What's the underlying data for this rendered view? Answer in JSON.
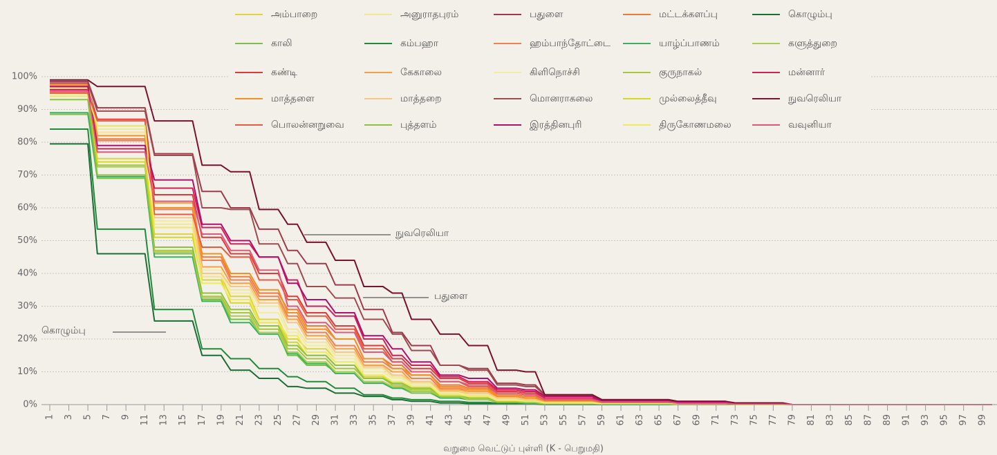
{
  "chart_data": {
    "type": "line",
    "x_label": "வறுமை வெட்டுப் புள்ளி (K - பெறுமதி)",
    "x": [
      1,
      5,
      6,
      11,
      12,
      16,
      17,
      19,
      20,
      22,
      23,
      25,
      26,
      27,
      28,
      30,
      31,
      33,
      34,
      36,
      37,
      38,
      39,
      41,
      42,
      44,
      45,
      47,
      48,
      50,
      51,
      52,
      53,
      58,
      59,
      66,
      67,
      72,
      73,
      78,
      79,
      100
    ],
    "xlim": [
      1,
      100
    ],
    "xticks": [
      1,
      3,
      5,
      7,
      9,
      11,
      13,
      15,
      17,
      19,
      21,
      23,
      25,
      27,
      29,
      31,
      33,
      35,
      37,
      39,
      41,
      43,
      45,
      47,
      49,
      51,
      53,
      55,
      57,
      59,
      61,
      63,
      65,
      67,
      69,
      71,
      73,
      75,
      77,
      79,
      81,
      83,
      85,
      87,
      89,
      91,
      93,
      95,
      97,
      99
    ],
    "ylim": [
      0,
      100
    ],
    "yticks": [
      {
        "value": 0,
        "label": "0%"
      },
      {
        "value": 10,
        "label": "10%"
      },
      {
        "value": 20,
        "label": "20%"
      },
      {
        "value": 30,
        "label": "30%"
      },
      {
        "value": 40,
        "label": "40%"
      },
      {
        "value": 50,
        "label": "50%"
      },
      {
        "value": 60,
        "label": "60%"
      },
      {
        "value": 70,
        "label": "70%"
      },
      {
        "value": 80,
        "label": "80%"
      },
      {
        "value": 90,
        "label": "90%"
      },
      {
        "value": 100,
        "label": "100%"
      }
    ],
    "grid": true,
    "series": [
      {
        "name": "அம்பாறை",
        "color": "#e0d43a",
        "values": [
          94,
          94,
          75,
          75,
          52,
          52,
          39,
          39,
          33,
          33,
          26,
          26,
          20,
          20,
          17,
          17,
          14,
          14,
          10,
          10,
          8,
          8,
          6,
          6,
          4,
          4,
          3,
          3,
          1.5,
          1.5,
          1.2,
          1.2,
          0.6,
          0.6,
          0.3,
          0.3,
          0.1,
          0.1,
          0,
          0,
          0,
          0
        ]
      },
      {
        "name": "அனுராதபுரம்",
        "color": "#efe89a",
        "values": [
          95.5,
          95.5,
          84,
          84,
          55,
          55,
          39,
          39,
          35,
          35,
          30,
          30,
          23,
          23,
          19,
          19,
          15,
          15,
          11,
          11,
          8.5,
          8.5,
          6.5,
          6.5,
          3.5,
          3.5,
          3,
          3,
          1.5,
          1.5,
          1.2,
          1.2,
          0.6,
          0.6,
          0.3,
          0.3,
          0.1,
          0.1,
          0,
          0,
          0,
          0
        ]
      },
      {
        "name": "பதுளை",
        "color": "#9e3a4a",
        "values": [
          98.5,
          98.5,
          90.5,
          90.5,
          76.5,
          76.5,
          65,
          65,
          60,
          60,
          53.5,
          53.5,
          47,
          47,
          43,
          43,
          36.5,
          36.5,
          29,
          29,
          22,
          22,
          18,
          18,
          12,
          12,
          11,
          11,
          6.5,
          6.5,
          6,
          6,
          3,
          3,
          1.5,
          1.5,
          1,
          1,
          0.5,
          0.5,
          0,
          0
        ]
      },
      {
        "name": "மட்டக்களப்பு",
        "color": "#f07a3a",
        "values": [
          96,
          96,
          81,
          81,
          62,
          62,
          45,
          45,
          39,
          39,
          34,
          34,
          29,
          29,
          24,
          24,
          20,
          20,
          14,
          14,
          12,
          12,
          9,
          9,
          6,
          6,
          5,
          5,
          3,
          3,
          2.5,
          2.5,
          1.2,
          1.2,
          0.6,
          0.6,
          0.3,
          0.3,
          0.1,
          0.1,
          0,
          0
        ]
      },
      {
        "name": "கொழும்பு",
        "color": "#1a6e35",
        "values": [
          79.5,
          79.5,
          46,
          46,
          25.5,
          25.5,
          15,
          15,
          10.5,
          10.5,
          8,
          8,
          5.5,
          5.5,
          5,
          5,
          3.5,
          3.5,
          2.5,
          2.5,
          1.5,
          1.5,
          1,
          1,
          0.5,
          0.5,
          0.3,
          0.3,
          0.2,
          0.2,
          0.1,
          0.1,
          0,
          0,
          0,
          0,
          0,
          0,
          0,
          0,
          0,
          0
        ]
      },
      {
        "name": "காலி",
        "color": "#7cc04a",
        "values": [
          88.5,
          88.5,
          69,
          69,
          46,
          46,
          32,
          32,
          26,
          26,
          22,
          22,
          15,
          15,
          12,
          12,
          10,
          10,
          7,
          7,
          5,
          5,
          3.5,
          3.5,
          2,
          2,
          1.5,
          1.5,
          0.7,
          0.7,
          0.5,
          0.5,
          0.2,
          0.2,
          0.1,
          0.1,
          0,
          0,
          0,
          0,
          0,
          0
        ]
      },
      {
        "name": "கம்பஹா",
        "color": "#1f8a3a",
        "values": [
          84,
          84,
          53.5,
          53.5,
          29,
          29,
          17,
          17,
          14,
          14,
          11,
          11,
          8.5,
          8.5,
          7,
          7,
          5,
          5,
          3,
          3,
          2,
          2,
          1.5,
          1.5,
          1,
          1,
          0.7,
          0.7,
          0.4,
          0.4,
          0.2,
          0.2,
          0.1,
          0.1,
          0,
          0,
          0,
          0,
          0,
          0,
          0,
          0
        ]
      },
      {
        "name": "ஹம்பாந்தோட்டை",
        "color": "#f08050",
        "values": [
          95,
          95,
          80.5,
          80.5,
          59.5,
          59.5,
          44,
          44,
          38,
          38,
          33,
          33,
          27,
          27,
          22,
          22,
          18,
          18,
          13,
          13,
          11,
          11,
          8,
          8,
          5,
          5,
          4,
          4,
          2.5,
          2.5,
          2,
          2,
          1,
          1,
          0.5,
          0.5,
          0.2,
          0.2,
          0,
          0,
          0,
          0
        ]
      },
      {
        "name": "யாழ்ப்பாணம்",
        "color": "#3ab060",
        "values": [
          89,
          89,
          69.5,
          69.5,
          45,
          45,
          31.5,
          31.5,
          25,
          25,
          21.5,
          21.5,
          15.5,
          15.5,
          12.5,
          12.5,
          9.5,
          9.5,
          6.5,
          6.5,
          5,
          5,
          4,
          4,
          2,
          2,
          1.5,
          1.5,
          0.8,
          0.8,
          0.5,
          0.5,
          0.2,
          0.2,
          0.1,
          0.1,
          0,
          0,
          0,
          0,
          0,
          0
        ]
      },
      {
        "name": "களுத்துறை",
        "color": "#a8cc50",
        "values": [
          95,
          95,
          72.5,
          72.5,
          46.5,
          46.5,
          32.5,
          32.5,
          27,
          27,
          22,
          22,
          16,
          16,
          13,
          13,
          10,
          10,
          7,
          7,
          5.5,
          5.5,
          4,
          4,
          2.5,
          2.5,
          1.5,
          1.5,
          0.8,
          0.8,
          0.6,
          0.6,
          0.3,
          0.3,
          0.1,
          0.1,
          0,
          0,
          0,
          0,
          0,
          0
        ]
      },
      {
        "name": "கண்டி",
        "color": "#e03a3a",
        "values": [
          96.5,
          96.5,
          87,
          87,
          64,
          64,
          51,
          51,
          46,
          46,
          40,
          40,
          33,
          33,
          28,
          28,
          24,
          24,
          18,
          18,
          14,
          14,
          11,
          11,
          8,
          8,
          6.5,
          6.5,
          4,
          4,
          3.5,
          3.5,
          2,
          2,
          1,
          1,
          0.5,
          0.5,
          0.1,
          0.1,
          0,
          0
        ]
      },
      {
        "name": "கேகாலை",
        "color": "#f8a040",
        "values": [
          97,
          97,
          83,
          83,
          61.5,
          61.5,
          42,
          42,
          37,
          37,
          32,
          32,
          26,
          26,
          21,
          21,
          17,
          17,
          12,
          12,
          10,
          10,
          7,
          7,
          4.5,
          4.5,
          4,
          4,
          2,
          2,
          1.5,
          1.5,
          0.8,
          0.8,
          0.4,
          0.4,
          0.2,
          0.2,
          0,
          0,
          0,
          0
        ]
      },
      {
        "name": "கிளிநொச்சி",
        "color": "#f4ee9a",
        "values": [
          94.5,
          94.5,
          83,
          83,
          56,
          56,
          41,
          41,
          34,
          34,
          28,
          28,
          22,
          22,
          18,
          18,
          14,
          14,
          10,
          10,
          8,
          8,
          6,
          6,
          3.5,
          3.5,
          2.5,
          2.5,
          1.2,
          1.2,
          1,
          1,
          0.5,
          0.5,
          0.2,
          0.2,
          0.1,
          0.1,
          0,
          0,
          0,
          0
        ]
      },
      {
        "name": "குருநாகல்",
        "color": "#a8c838",
        "values": [
          96,
          96,
          73,
          73,
          47,
          47,
          33,
          33,
          28,
          28,
          23,
          23,
          17,
          17,
          14,
          14,
          11,
          11,
          8,
          8,
          6,
          6,
          4.5,
          4.5,
          2.5,
          2.5,
          2,
          2,
          1,
          1,
          0.8,
          0.8,
          0.4,
          0.4,
          0.2,
          0.2,
          0,
          0,
          0,
          0,
          0,
          0
        ]
      },
      {
        "name": "மன்னார்",
        "color": "#d0205a",
        "values": [
          96,
          96,
          78,
          78,
          66,
          66,
          54,
          54,
          49,
          49,
          45,
          45,
          38,
          38,
          30,
          30,
          27,
          27,
          20,
          20,
          15,
          15,
          12,
          12,
          8.5,
          8.5,
          7,
          7,
          4.5,
          4.5,
          4,
          4,
          2,
          2,
          1,
          1,
          0.5,
          0.5,
          0.2,
          0.2,
          0,
          0
        ]
      },
      {
        "name": "மாத்தளை",
        "color": "#f49020",
        "values": [
          97.5,
          97.5,
          82,
          82,
          60,
          60,
          46,
          46,
          40,
          40,
          35,
          35,
          28,
          28,
          23,
          23,
          20,
          20,
          14,
          14,
          11,
          11,
          9,
          9,
          5.5,
          5.5,
          4.5,
          4.5,
          2.5,
          2.5,
          2,
          2,
          1,
          1,
          0.5,
          0.5,
          0.2,
          0.2,
          0,
          0,
          0,
          0
        ]
      },
      {
        "name": "மாத்தறை",
        "color": "#f8c880",
        "values": [
          96.5,
          96.5,
          85,
          85,
          57,
          57,
          40,
          40,
          36,
          36,
          31,
          31,
          25,
          25,
          20,
          20,
          16,
          16,
          11.5,
          11.5,
          9,
          9,
          7,
          7,
          4,
          4,
          3.5,
          3.5,
          2,
          2,
          1.5,
          1.5,
          0.7,
          0.7,
          0.3,
          0.3,
          0.1,
          0.1,
          0,
          0,
          0,
          0
        ]
      },
      {
        "name": "மொனராகலை",
        "color": "#a04a50",
        "values": [
          98,
          98,
          89.5,
          89.5,
          76,
          76,
          60,
          60,
          59.5,
          59.5,
          49,
          49,
          43,
          43,
          36,
          36,
          32.5,
          32.5,
          26,
          26,
          21.5,
          21.5,
          16.5,
          16.5,
          12,
          12,
          10.5,
          10.5,
          6,
          6,
          5.5,
          5.5,
          2.8,
          2.8,
          1.2,
          1.2,
          0.8,
          0.8,
          0.3,
          0.3,
          0,
          0
        ]
      },
      {
        "name": "முல்லைத்தீவு",
        "color": "#d8d820",
        "values": [
          95,
          95,
          74,
          74,
          51,
          51,
          38,
          38,
          31,
          31,
          25,
          25,
          19,
          19,
          15,
          15,
          12,
          12,
          8.5,
          8.5,
          7,
          7,
          5,
          5,
          3,
          3,
          2,
          2,
          1,
          1,
          0.8,
          0.8,
          0.4,
          0.4,
          0.2,
          0.2,
          0,
          0,
          0,
          0,
          0,
          0
        ]
      },
      {
        "name": "நுவரெலியா",
        "color": "#7a1030",
        "values": [
          99,
          99,
          97,
          97,
          86.5,
          86.5,
          73,
          73,
          71,
          71,
          59.5,
          59.5,
          55,
          55,
          49.5,
          49.5,
          44,
          44,
          36,
          36,
          34,
          34,
          26,
          26,
          21.5,
          21.5,
          18,
          18,
          10.5,
          10.5,
          10,
          10,
          3,
          3,
          1.5,
          1.5,
          1,
          1,
          0.5,
          0.5,
          0,
          0
        ]
      },
      {
        "name": "பொலன்னறுவை",
        "color": "#e85a40",
        "values": [
          95,
          95,
          86.5,
          86.5,
          58,
          58,
          48,
          48,
          45,
          45,
          38,
          38,
          32,
          32,
          27,
          27,
          23,
          23,
          17,
          17,
          13,
          13,
          10,
          10,
          7,
          7,
          5.5,
          5.5,
          3.5,
          3.5,
          3,
          3,
          1.5,
          1.5,
          0.7,
          0.7,
          0.4,
          0.4,
          0.1,
          0.1,
          0,
          0
        ]
      },
      {
        "name": "புத்தளம்",
        "color": "#90c040",
        "values": [
          93,
          93,
          70,
          70,
          48,
          48,
          34,
          34,
          29,
          29,
          24,
          24,
          18,
          18,
          15,
          15,
          12,
          12,
          8,
          8,
          6.5,
          6.5,
          5,
          5,
          3,
          3,
          2,
          2,
          1,
          1,
          0.8,
          0.8,
          0.4,
          0.4,
          0.2,
          0.2,
          0,
          0,
          0,
          0,
          0,
          0
        ]
      },
      {
        "name": "இரத்தினபுரி",
        "color": "#b0106a",
        "values": [
          97,
          97,
          79,
          79,
          68.5,
          68.5,
          55,
          55,
          50,
          50,
          45,
          45,
          37,
          37,
          32,
          32,
          28,
          28,
          21,
          21,
          17,
          17,
          13,
          13,
          9,
          9,
          8,
          8,
          5,
          5,
          4.5,
          4.5,
          2.5,
          2.5,
          1,
          1,
          0.7,
          0.7,
          0.2,
          0.2,
          0,
          0
        ]
      },
      {
        "name": "திருகோணமலை",
        "color": "#eeea60",
        "values": [
          94,
          94,
          85,
          85,
          54,
          54,
          37,
          37,
          32,
          32,
          25,
          25,
          21,
          21,
          16,
          16,
          13,
          13,
          9,
          9,
          7,
          7,
          5.5,
          5.5,
          3,
          3,
          2.5,
          2.5,
          1.2,
          1.2,
          1,
          1,
          0.5,
          0.5,
          0.2,
          0.2,
          0.1,
          0.1,
          0,
          0,
          0,
          0
        ]
      },
      {
        "name": "வவுனியா",
        "color": "#e05878",
        "values": [
          95.5,
          95.5,
          77,
          77,
          62,
          62,
          52,
          52,
          47,
          47,
          41,
          41,
          30,
          30,
          25,
          25,
          22,
          22,
          16,
          16,
          13,
          13,
          10,
          10,
          7,
          7,
          6,
          6,
          3.5,
          3.5,
          3,
          3,
          1.5,
          1.5,
          0.8,
          0.8,
          0.4,
          0.4,
          0.1,
          0.1,
          0,
          0
        ]
      }
    ],
    "annotations": [
      "நுவரெலியா",
      "பதுளை",
      "கொழும்பு"
    ]
  }
}
